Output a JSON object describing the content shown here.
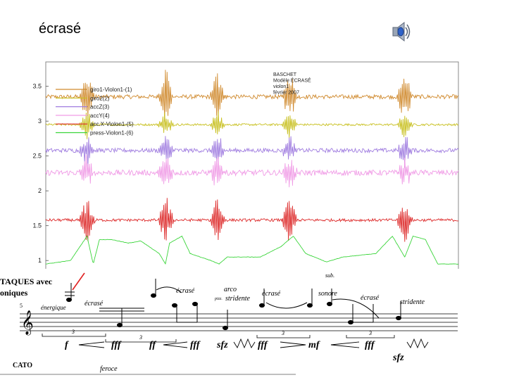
{
  "slide": {
    "title": "écrasé"
  },
  "icons": {
    "speaker": "speaker-icon"
  },
  "chart_data": {
    "type": "line",
    "title": "",
    "xlabel": "",
    "ylabel": "",
    "ylim": [
      0.8,
      3.85
    ],
    "yticks": [
      1,
      1.5,
      2,
      2.5,
      3,
      3.5
    ],
    "ytick_labels": [
      "1",
      "1.5",
      "2",
      "2.5",
      "3",
      "3.5"
    ],
    "xlim": [
      0,
      1
    ],
    "grid": false,
    "legend_position": "top-left",
    "annotation": [
      "BASCHET",
      "Modèle ÉCRASÉ",
      "violon1",
      "février 2007"
    ],
    "events": [
      0.1,
      0.291,
      0.417,
      0.591,
      0.87
    ],
    "series": [
      {
        "name": "giro1-Violon1-(1)",
        "color": "#d08a2e",
        "baseline": 3.35,
        "noise": 0.03,
        "spike": 0.35
      },
      {
        "name": "giro2(2)",
        "color": "#c8c020",
        "baseline": 2.95,
        "noise": 0.015,
        "spike": 0.18
      },
      {
        "name": "accZ(3)",
        "color": "#a07de0",
        "baseline": 2.58,
        "noise": 0.03,
        "spike": 0.22
      },
      {
        "name": "accY(4)",
        "color": "#f09be6",
        "baseline": 2.26,
        "noise": 0.04,
        "spike": 0.22
      },
      {
        "name": "acc.X-Violon1-(5)",
        "color": "#dd2a2a",
        "baseline": 1.58,
        "noise": 0.02,
        "spike": 0.3
      },
      {
        "name": "press-Violon1-(6)",
        "color": "#3ad53a",
        "baseline": 0.95,
        "noise": 0.005,
        "spike": 0
      }
    ],
    "press_profile": {
      "x": [
        0,
        0.06,
        0.1,
        0.115,
        0.13,
        0.16,
        0.2,
        0.23,
        0.275,
        0.29,
        0.3,
        0.33,
        0.35,
        0.4,
        0.42,
        0.44,
        0.52,
        0.57,
        0.6,
        0.63,
        0.68,
        0.72,
        0.8,
        0.84,
        0.87,
        0.89,
        0.92,
        0.95,
        1
      ],
      "y": [
        0.95,
        1.0,
        1.35,
        0.95,
        1.3,
        1.3,
        1.25,
        1.28,
        1.1,
        0.95,
        1.25,
        1.35,
        1.1,
        1.0,
        0.95,
        1.05,
        1.05,
        1.2,
        1.35,
        1.1,
        0.98,
        1.05,
        1.1,
        1.35,
        1.05,
        1.35,
        1.3,
        0.95,
        0.95
      ]
    }
  },
  "score": {
    "heading_left": "TAQUES avec",
    "heading_left2": "oniques",
    "measure_number": "5",
    "markings": [
      "énergique",
      "écrasé",
      "écrasé",
      "arco",
      "stridente",
      "écrasé",
      "sonore",
      "écrasé",
      "stridente",
      "pizz.",
      "sub."
    ],
    "dynamics": [
      "f",
      "fff",
      "ff",
      "fff",
      "sfz",
      "fff",
      "mf",
      "fff",
      "sfz"
    ],
    "tuplets": [
      "3",
      "3",
      "3",
      "3"
    ],
    "bottom_left": "CATO",
    "bottom_mid": "feroce"
  }
}
